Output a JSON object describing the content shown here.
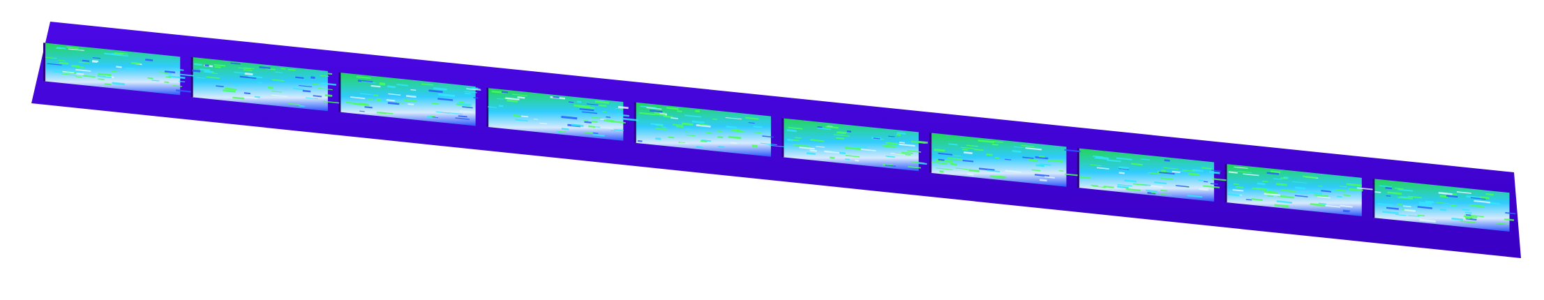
{
  "scene": {
    "description_free": true,
    "colors": {
      "background": "#ffffff",
      "base_plate": "#4400dd",
      "base_plate_side": "#3a00c4",
      "mid_blue": "#2a5cff",
      "cyan": "#33e6ff",
      "green": "#22e050",
      "bright_green": "#4bff55",
      "highlight": "#dff6ff",
      "dark_purple": "#2a0080"
    },
    "segments": [
      {
        "label": "",
        "relief": 0.55
      },
      {
        "label": "",
        "relief": 0.7
      },
      {
        "label": "",
        "relief": 0.65
      },
      {
        "label": "",
        "relief": 0.6
      },
      {
        "label": "",
        "relief": 0.75
      },
      {
        "label": "",
        "relief": 0.6
      },
      {
        "label": "",
        "relief": 0.7
      },
      {
        "label": "",
        "relief": 0.65
      },
      {
        "label": "",
        "relief": 0.55
      },
      {
        "label": "",
        "relief": 0.6
      }
    ]
  }
}
